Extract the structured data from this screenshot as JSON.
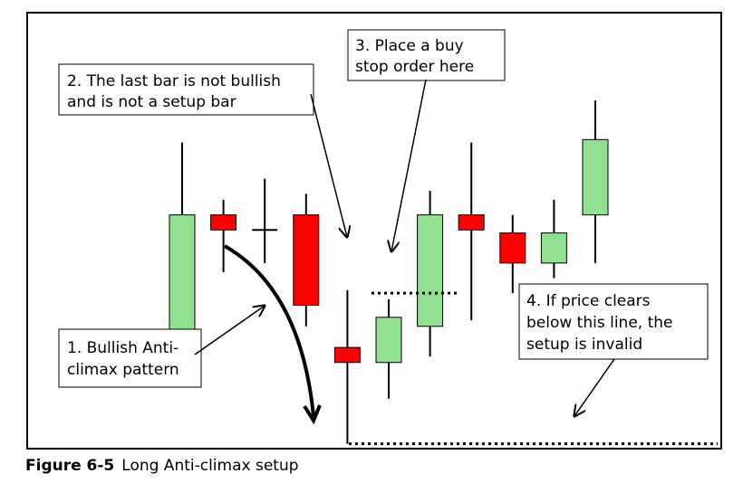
{
  "figure": {
    "caption_label": "Figure 6-5",
    "caption_text": "Long Anti-climax setup"
  },
  "annotations": {
    "bullish_pattern": [
      "1. Bullish Anti-",
      "climax pattern"
    ],
    "last_bar": [
      "2. The last bar is not bullish",
      "and is not a setup bar"
    ],
    "buy_stop": [
      "3. Place a buy",
      "stop order here"
    ],
    "invalid": [
      "4. If price clears",
      "below this line, the",
      "setup is invalid"
    ]
  },
  "colors": {
    "bull": "#90e090",
    "bear": "#ff0000",
    "doji": "#000000",
    "outline": "#000000"
  },
  "chart_data": {
    "type": "candlestick",
    "price_range": [
      100,
      0
    ],
    "candles": [
      {
        "dir": "bull",
        "open": 31,
        "close": 71,
        "high": 95,
        "low": 19
      },
      {
        "dir": "bear",
        "open": 71,
        "close": 66,
        "high": 76,
        "low": 52
      },
      {
        "dir": "doji",
        "open": 66,
        "close": 66,
        "high": 83,
        "low": 55
      },
      {
        "dir": "bear",
        "open": 71,
        "close": 41,
        "high": 78,
        "low": 34
      },
      {
        "dir": "bear",
        "open": 27,
        "close": 22,
        "high": 46,
        "low": -5
      },
      {
        "dir": "bull",
        "open": 22,
        "close": 37,
        "high": 43,
        "low": 10
      },
      {
        "dir": "bull",
        "open": 34,
        "close": 71,
        "high": 79,
        "low": 24
      },
      {
        "dir": "bear",
        "open": 71,
        "close": 66,
        "high": 95,
        "low": 36
      },
      {
        "dir": "bear",
        "open": 65,
        "close": 55,
        "high": 71,
        "low": 45
      },
      {
        "dir": "bull",
        "open": 55,
        "close": 65,
        "high": 76,
        "low": 50
      },
      {
        "dir": "bull",
        "open": 71,
        "close": 96,
        "high": 109,
        "low": 55
      }
    ],
    "levels": {
      "buy_stop": 45,
      "invalid": -5
    }
  }
}
